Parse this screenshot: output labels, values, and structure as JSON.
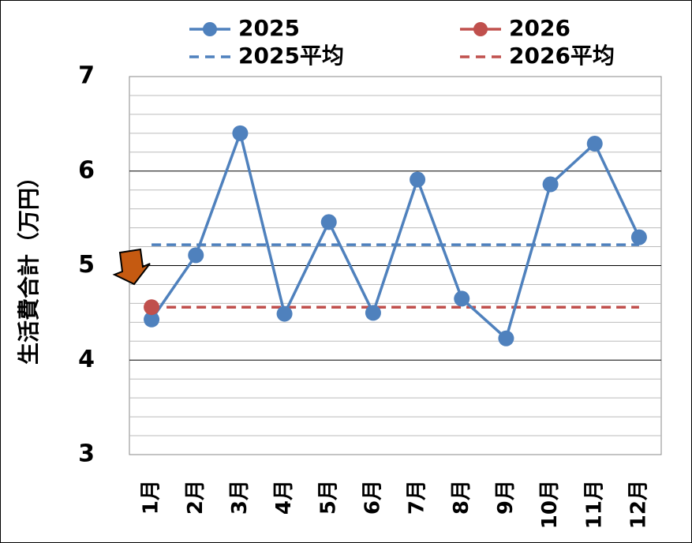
{
  "chart_data": {
    "type": "line",
    "y_label": "生活費合計（万円）",
    "categories": [
      "1月",
      "2月",
      "3月",
      "4月",
      "5月",
      "6月",
      "7月",
      "8月",
      "9月",
      "10月",
      "11月",
      "12月"
    ],
    "series": [
      {
        "name": "2025",
        "color": "#4f81bd",
        "values": [
          4.43,
          5.11,
          6.4,
          4.49,
          5.46,
          4.5,
          5.91,
          4.65,
          4.23,
          5.86,
          6.29,
          5.3
        ]
      },
      {
        "name": "2026",
        "color": "#c0504d",
        "values": [
          4.56,
          null,
          null,
          null,
          null,
          null,
          null,
          null,
          null,
          null,
          null,
          null
        ]
      }
    ],
    "average_lines": [
      {
        "name": "2025平均",
        "color": "#4f81bd",
        "value": 5.22
      },
      {
        "name": "2026平均",
        "color": "#c0504d",
        "value": 4.56
      }
    ],
    "ylim": [
      3,
      7
    ],
    "yticks": [
      3,
      4,
      5,
      6,
      7
    ],
    "minor_yticks": [
      3.2,
      3.4,
      3.6,
      3.8,
      4.2,
      4.4,
      4.6,
      4.8,
      5.2,
      5.4,
      5.6,
      5.8,
      6.2,
      6.4,
      6.6,
      6.8
    ],
    "grid": true,
    "legend": "top"
  }
}
